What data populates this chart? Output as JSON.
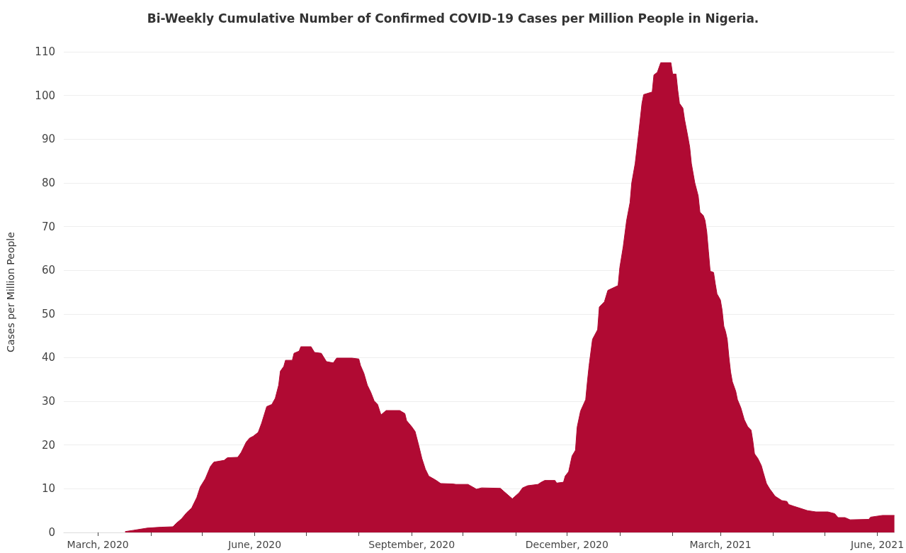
{
  "chart_data": {
    "type": "area",
    "title": "Bi-Weekly Cumulative Number of Confirmed COVID-19 Cases per Million People in Nigeria.",
    "ylabel": "Cases per Million People",
    "color": "#b00a33",
    "marker": "none",
    "grid": "y",
    "x": [
      "2020-03-17",
      "2020-03-22",
      "2020-03-30",
      "2020-04-07",
      "2020-04-14",
      "2020-04-16",
      "2020-04-19",
      "2020-04-22",
      "2020-04-25",
      "2020-04-28",
      "2020-04-30",
      "2020-05-03",
      "2020-05-06",
      "2020-05-08",
      "2020-05-14",
      "2020-05-16",
      "2020-05-22",
      "2020-05-24",
      "2020-05-27",
      "2020-05-29",
      "2020-05-31",
      "2020-06-03",
      "2020-06-05",
      "2020-06-08",
      "2020-06-11",
      "2020-06-13",
      "2020-06-15",
      "2020-06-16",
      "2020-06-18",
      "2020-06-19",
      "2020-06-23",
      "2020-06-24",
      "2020-06-27",
      "2020-06-28",
      "2020-07-04",
      "2020-07-06",
      "2020-07-10",
      "2020-07-13",
      "2020-07-17",
      "2020-07-19",
      "2020-07-28",
      "2020-08-01",
      "2020-08-02",
      "2020-08-04",
      "2020-08-06",
      "2020-08-08",
      "2020-08-10",
      "2020-08-12",
      "2020-08-14",
      "2020-08-17",
      "2020-08-25",
      "2020-08-28",
      "2020-08-29",
      "2020-09-01",
      "2020-09-03",
      "2020-09-05",
      "2020-09-07",
      "2020-09-09",
      "2020-09-11",
      "2020-09-15",
      "2020-09-18",
      "2020-09-25",
      "2020-09-27",
      "2020-10-04",
      "2020-10-09",
      "2020-10-12",
      "2020-10-23",
      "2020-10-25",
      "2020-10-30",
      "2020-11-03",
      "2020-11-05",
      "2020-11-08",
      "2020-11-14",
      "2020-11-16",
      "2020-11-18",
      "2020-11-24",
      "2020-11-25",
      "2020-11-29",
      "2020-11-30",
      "2020-12-02",
      "2020-12-04",
      "2020-12-06",
      "2020-12-07",
      "2020-12-09",
      "2020-12-12",
      "2020-12-13",
      "2020-12-14",
      "2020-12-16",
      "2020-12-19",
      "2020-12-20",
      "2020-12-23",
      "2020-12-25",
      "2020-12-31",
      "2021-01-01",
      "2021-01-03",
      "2021-01-05",
      "2021-01-07",
      "2021-01-08",
      "2021-01-10",
      "2021-01-12",
      "2021-01-14",
      "2021-01-15",
      "2021-01-20",
      "2021-01-21",
      "2021-01-23",
      "2021-01-25",
      "2021-01-31",
      "2021-02-01",
      "2021-02-03",
      "2021-02-04",
      "2021-02-05",
      "2021-02-07",
      "2021-02-08",
      "2021-02-10",
      "2021-02-11",
      "2021-02-12",
      "2021-02-14",
      "2021-02-16",
      "2021-02-17",
      "2021-02-19",
      "2021-02-20",
      "2021-02-21",
      "2021-02-22",
      "2021-02-23",
      "2021-02-25",
      "2021-02-26",
      "2021-02-27",
      "2021-03-01",
      "2021-03-02",
      "2021-03-03",
      "2021-03-04",
      "2021-03-05",
      "2021-03-06",
      "2021-03-07",
      "2021-03-08",
      "2021-03-10",
      "2021-03-11",
      "2021-03-13",
      "2021-03-15",
      "2021-03-17",
      "2021-03-19",
      "2021-03-20",
      "2021-03-21",
      "2021-03-23",
      "2021-03-25",
      "2021-03-26",
      "2021-03-28",
      "2021-03-30",
      "2021-03-31",
      "2021-04-02",
      "2021-04-06",
      "2021-04-09",
      "2021-04-10",
      "2021-04-13",
      "2021-04-17",
      "2021-04-21",
      "2021-04-26",
      "2021-05-03",
      "2021-05-07",
      "2021-05-09",
      "2021-05-13",
      "2021-05-16",
      "2021-05-27",
      "2021-05-28",
      "2021-06-04",
      "2021-06-11"
    ],
    "values": [
      0.2,
      0.5,
      1.0,
      1.2,
      1.3,
      2.1,
      3.1,
      4.5,
      5.6,
      8.0,
      10.4,
      12.3,
      15.1,
      16.1,
      16.5,
      17.1,
      17.2,
      18.3,
      20.7,
      21.6,
      22.0,
      22.9,
      25.0,
      28.8,
      29.3,
      30.7,
      33.7,
      36.9,
      38.0,
      39.4,
      39.4,
      41.0,
      41.5,
      42.5,
      42.5,
      41.2,
      41.0,
      39.1,
      38.8,
      39.9,
      39.9,
      39.7,
      38.2,
      36.4,
      33.7,
      32.1,
      30.1,
      29.3,
      26.9,
      27.9,
      27.9,
      27.2,
      25.6,
      24.2,
      23.1,
      20.1,
      16.9,
      14.5,
      12.9,
      12.0,
      11.2,
      11.1,
      11.0,
      11.0,
      9.9,
      10.2,
      10.1,
      9.4,
      7.7,
      9.1,
      10.2,
      10.7,
      11.0,
      11.5,
      11.9,
      11.9,
      11.3,
      11.5,
      12.9,
      13.9,
      17.5,
      18.8,
      24.1,
      27.8,
      30.4,
      34.5,
      38.2,
      44.2,
      46.4,
      51.6,
      52.8,
      55.4,
      56.5,
      60.6,
      65.4,
      71.4,
      75.5,
      80.0,
      84.4,
      91.1,
      98.2,
      100.2,
      100.8,
      104.7,
      105.3,
      107.5,
      107.5,
      104.9,
      104.9,
      101.2,
      98.2,
      97.1,
      94.5,
      90.4,
      88.2,
      84.4,
      80.0,
      77.0,
      73.3,
      72.5,
      71.4,
      68.8,
      64.3,
      59.8,
      59.5,
      56.9,
      54.6,
      53.2,
      50.9,
      47.2,
      46.0,
      44.2,
      40.1,
      36.7,
      34.5,
      32.3,
      30.4,
      28.5,
      25.8,
      24.2,
      23.4,
      21.0,
      18.0,
      16.9,
      15.3,
      13.9,
      11.2,
      9.9,
      9.4,
      8.3,
      7.3,
      7.1,
      6.4,
      6.0,
      5.5,
      5.0,
      4.7,
      4.7,
      4.3,
      3.4,
      3.4,
      2.9,
      3.0,
      3.5,
      3.9,
      3.9
    ],
    "xlim": [
      "2020-02-10",
      "2021-06-11"
    ],
    "xticks": [
      {
        "value": "2020-03-01",
        "label": "March, 2020"
      },
      {
        "value": "2020-04-01",
        "label": null
      },
      {
        "value": "2020-05-01",
        "label": null
      },
      {
        "value": "2020-06-01",
        "label": "June, 2020"
      },
      {
        "value": "2020-07-01",
        "label": null
      },
      {
        "value": "2020-08-01",
        "label": null
      },
      {
        "value": "2020-09-01",
        "label": "September, 2020"
      },
      {
        "value": "2020-10-01",
        "label": null
      },
      {
        "value": "2020-11-01",
        "label": null
      },
      {
        "value": "2020-12-01",
        "label": "December, 2020"
      },
      {
        "value": "2021-01-01",
        "label": null
      },
      {
        "value": "2021-02-01",
        "label": null
      },
      {
        "value": "2021-03-01",
        "label": "March, 2021"
      },
      {
        "value": "2021-04-01",
        "label": null
      },
      {
        "value": "2021-05-01",
        "label": null
      },
      {
        "value": "2021-06-01",
        "label": "June, 2021"
      }
    ],
    "ylim": [
      0,
      110
    ],
    "yticks": [
      0,
      10,
      20,
      30,
      40,
      50,
      60,
      70,
      80,
      90,
      100,
      110
    ]
  }
}
